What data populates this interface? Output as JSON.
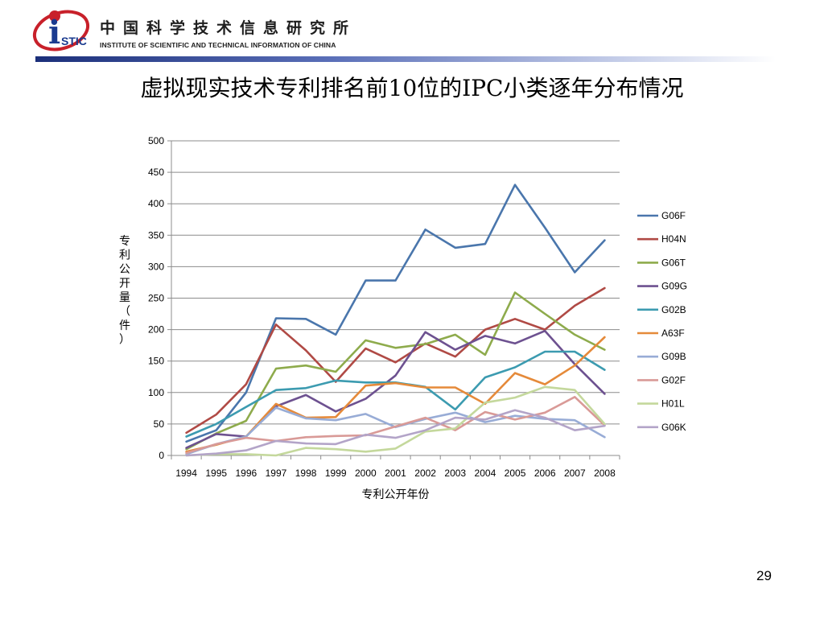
{
  "header": {
    "org_name_cn": "中国科学技术信息研究所",
    "org_name_en": "INSTITUTE OF SCIENTIFIC AND TECHNICAL INFORMATION OF CHINA",
    "logo_text": "STIC",
    "logo_letter": "i"
  },
  "title": "虚拟现实技术专利排名前10位的IPC小类逐年分布情况",
  "page_number": "29",
  "colors": {
    "G06F": "#4a76ac",
    "H04N": "#b04a45",
    "G06T": "#8eab4c",
    "G09G": "#6d5190",
    "G02B": "#3c9bb0",
    "A63F": "#e58a3a",
    "G09B": "#98acd6",
    "G02F": "#d99a97",
    "H01L": "#c4d89c",
    "G06K": "#b3a4c8"
  },
  "chart_data": {
    "type": "line",
    "xlabel": "专利公开年份",
    "ylabel": "专利公开量（件）",
    "ylim": [
      0,
      500
    ],
    "yticks": [
      0,
      50,
      100,
      150,
      200,
      250,
      300,
      350,
      400,
      450,
      500
    ],
    "grid": true,
    "legend_position": "right",
    "categories": [
      "1994",
      "1995",
      "1996",
      "1997",
      "1998",
      "1999",
      "2000",
      "2001",
      "2002",
      "2003",
      "2004",
      "2005",
      "2006",
      "2007",
      "2008"
    ],
    "series": [
      {
        "name": "G06F",
        "values": [
          22,
          40,
          100,
          218,
          217,
          192,
          278,
          278,
          359,
          330,
          336,
          430,
          362,
          291,
          342
        ]
      },
      {
        "name": "H04N",
        "values": [
          36,
          65,
          113,
          208,
          167,
          117,
          170,
          148,
          178,
          157,
          200,
          217,
          200,
          238,
          266
        ]
      },
      {
        "name": "G06T",
        "values": [
          10,
          35,
          55,
          138,
          143,
          133,
          183,
          171,
          177,
          192,
          160,
          259,
          225,
          192,
          168
        ]
      },
      {
        "name": "G09G",
        "values": [
          12,
          34,
          30,
          78,
          96,
          70,
          90,
          127,
          196,
          168,
          190,
          178,
          198,
          145,
          98
        ]
      },
      {
        "name": "G02B",
        "values": [
          30,
          50,
          77,
          104,
          107,
          119,
          116,
          116,
          109,
          73,
          124,
          140,
          165,
          165,
          136
        ]
      },
      {
        "name": "A63F",
        "values": [
          6,
          17,
          30,
          82,
          60,
          61,
          111,
          115,
          108,
          108,
          82,
          131,
          113,
          143,
          188
        ]
      },
      {
        "name": "G09B",
        "values": [
          2,
          18,
          30,
          76,
          59,
          56,
          66,
          45,
          58,
          68,
          53,
          63,
          58,
          56,
          29
        ]
      },
      {
        "name": "G02F",
        "values": [
          4,
          18,
          28,
          23,
          29,
          31,
          32,
          46,
          60,
          40,
          69,
          57,
          68,
          93,
          48
        ]
      },
      {
        "name": "H01L",
        "values": [
          0,
          2,
          2,
          0,
          12,
          10,
          6,
          11,
          38,
          43,
          84,
          92,
          109,
          104,
          50
        ]
      },
      {
        "name": "G06K",
        "values": [
          0,
          3,
          8,
          23,
          19,
          18,
          33,
          28,
          40,
          60,
          57,
          72,
          60,
          40,
          47
        ]
      }
    ]
  }
}
